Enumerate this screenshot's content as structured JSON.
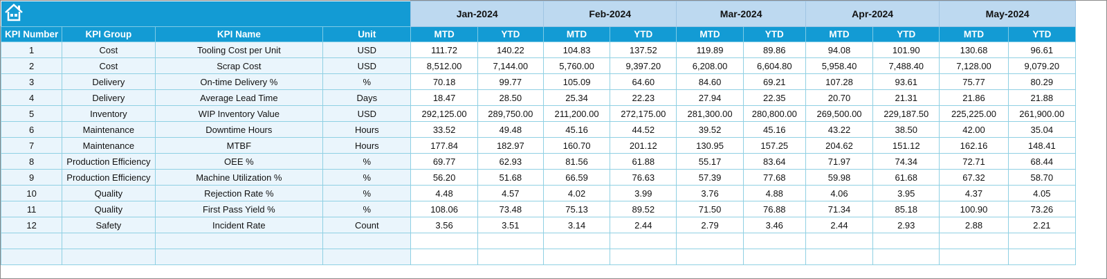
{
  "home_icon": "home-icon",
  "colors": {
    "banner": "#139bd4",
    "month_header": "#bdd9f0",
    "left_cell": "#eaf5fc",
    "grid": "#8fd0e3"
  },
  "months": [
    "Jan-2024",
    "Feb-2024",
    "Mar-2024",
    "Apr-2024",
    "May-2024"
  ],
  "columns": {
    "kpi_number": "KPI Number",
    "kpi_group": "KPI Group",
    "kpi_name": "KPI Name",
    "unit": "Unit",
    "mtd": "MTD",
    "ytd": "YTD"
  },
  "rows": [
    {
      "num": "1",
      "group": "Cost",
      "name": "Tooling Cost per Unit",
      "unit": "USD",
      "vals": [
        "111.72",
        "140.22",
        "104.83",
        "137.52",
        "119.89",
        "89.86",
        "94.08",
        "101.90",
        "130.68",
        "96.61"
      ]
    },
    {
      "num": "2",
      "group": "Cost",
      "name": "Scrap Cost",
      "unit": "USD",
      "vals": [
        "8,512.00",
        "7,144.00",
        "5,760.00",
        "9,397.20",
        "6,208.00",
        "6,604.80",
        "5,958.40",
        "7,488.40",
        "7,128.00",
        "9,079.20"
      ]
    },
    {
      "num": "3",
      "group": "Delivery",
      "name": "On-time Delivery %",
      "unit": "%",
      "vals": [
        "70.18",
        "99.77",
        "105.09",
        "64.60",
        "84.60",
        "69.21",
        "107.28",
        "93.61",
        "75.77",
        "80.29"
      ]
    },
    {
      "num": "4",
      "group": "Delivery",
      "name": "Average Lead Time",
      "unit": "Days",
      "vals": [
        "18.47",
        "28.50",
        "25.34",
        "22.23",
        "27.94",
        "22.35",
        "20.70",
        "21.31",
        "21.86",
        "21.88"
      ]
    },
    {
      "num": "5",
      "group": "Inventory",
      "name": "WIP Inventory Value",
      "unit": "USD",
      "vals": [
        "292,125.00",
        "289,750.00",
        "211,200.00",
        "272,175.00",
        "281,300.00",
        "280,800.00",
        "269,500.00",
        "229,187.50",
        "225,225.00",
        "261,900.00"
      ]
    },
    {
      "num": "6",
      "group": "Maintenance",
      "name": "Downtime Hours",
      "unit": "Hours",
      "vals": [
        "33.52",
        "49.48",
        "45.16",
        "44.52",
        "39.52",
        "45.16",
        "43.22",
        "38.50",
        "42.00",
        "35.04"
      ]
    },
    {
      "num": "7",
      "group": "Maintenance",
      "name": "MTBF",
      "unit": "Hours",
      "vals": [
        "177.84",
        "182.97",
        "160.70",
        "201.12",
        "130.95",
        "157.25",
        "204.62",
        "151.12",
        "162.16",
        "148.41"
      ]
    },
    {
      "num": "8",
      "group": "Production Efficiency",
      "name": "OEE %",
      "unit": "%",
      "vals": [
        "69.77",
        "62.93",
        "81.56",
        "61.88",
        "55.17",
        "83.64",
        "71.97",
        "74.34",
        "72.71",
        "68.44"
      ]
    },
    {
      "num": "9",
      "group": "Production Efficiency",
      "name": "Machine Utilization %",
      "unit": "%",
      "vals": [
        "56.20",
        "51.68",
        "66.59",
        "76.63",
        "57.39",
        "77.68",
        "59.98",
        "61.68",
        "67.32",
        "58.70"
      ]
    },
    {
      "num": "10",
      "group": "Quality",
      "name": "Rejection Rate %",
      "unit": "%",
      "vals": [
        "4.48",
        "4.57",
        "4.02",
        "3.99",
        "3.76",
        "4.88",
        "4.06",
        "3.95",
        "4.37",
        "4.05"
      ]
    },
    {
      "num": "11",
      "group": "Quality",
      "name": "First Pass Yield %",
      "unit": "%",
      "vals": [
        "108.06",
        "73.48",
        "75.13",
        "89.52",
        "71.50",
        "76.88",
        "71.34",
        "85.18",
        "100.90",
        "73.26"
      ]
    },
    {
      "num": "12",
      "group": "Safety",
      "name": "Incident Rate",
      "unit": "Count",
      "vals": [
        "3.56",
        "3.51",
        "3.14",
        "2.44",
        "2.79",
        "3.46",
        "2.44",
        "2.93",
        "2.88",
        "2.21"
      ]
    }
  ]
}
